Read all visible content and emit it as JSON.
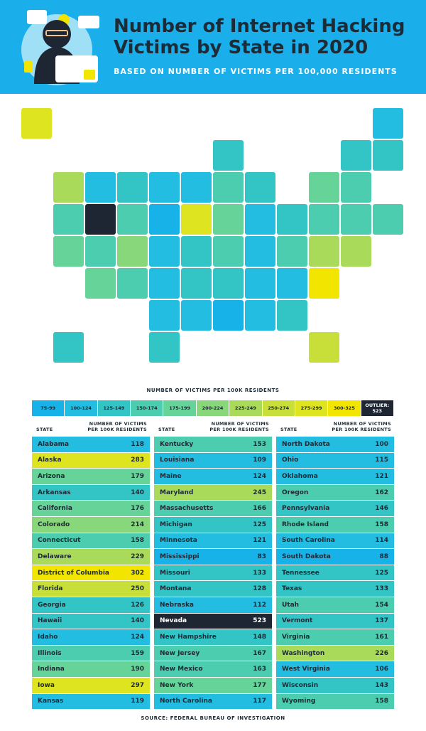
{
  "header": {
    "title": "Number of Internet Hacking Victims by State in 2020",
    "subtitle": "BASED ON NUMBER OF VICTIMS PER 100,000 RESIDENTS"
  },
  "legend": {
    "title": "NUMBER OF VICTIMS PER 100K RESIDENTS",
    "items": [
      {
        "label": "75-99",
        "range": [
          75,
          99
        ],
        "color": "#17b2e8"
      },
      {
        "label": "100-124",
        "range": [
          100,
          124
        ],
        "color": "#22bde0"
      },
      {
        "label": "125-149",
        "range": [
          125,
          149
        ],
        "color": "#33c4c6"
      },
      {
        "label": "150-174",
        "range": [
          150,
          174
        ],
        "color": "#4ccdb0"
      },
      {
        "label": "175-199",
        "range": [
          175,
          199
        ],
        "color": "#66d398"
      },
      {
        "label": "200-224",
        "range": [
          200,
          224
        ],
        "color": "#88d77a"
      },
      {
        "label": "225-249",
        "range": [
          225,
          249
        ],
        "color": "#a9da5a"
      },
      {
        "label": "250-274",
        "range": [
          250,
          274
        ],
        "color": "#c8df3a"
      },
      {
        "label": "275-299",
        "range": [
          275,
          299
        ],
        "color": "#dfe420"
      },
      {
        "label": "300-325",
        "range": [
          300,
          325
        ],
        "color": "#f2e600"
      },
      {
        "label": "OUTLIER: 523",
        "color": "#1f2633"
      }
    ]
  },
  "table": {
    "columns": [
      {
        "state_header": "STATE",
        "value_header": "NUMBER OF VICTIMS PER 100K RESIDENTS",
        "rows": [
          [
            "Alabama",
            118
          ],
          [
            "Alaska",
            283
          ],
          [
            "Arizona",
            179
          ],
          [
            "Arkansas",
            140
          ],
          [
            "California",
            176
          ],
          [
            "Colorado",
            214
          ],
          [
            "Connecticut",
            158
          ],
          [
            "Delaware",
            229
          ],
          [
            "District of Columbia",
            302
          ],
          [
            "Florida",
            250
          ],
          [
            "Georgia",
            126
          ],
          [
            "Hawaii",
            140
          ],
          [
            "Idaho",
            124
          ],
          [
            "Illinois",
            159
          ],
          [
            "Indiana",
            190
          ],
          [
            "Iowa",
            297
          ],
          [
            "Kansas",
            119
          ]
        ]
      },
      {
        "state_header": "STATE",
        "value_header": "NUMBER OF VICTIMS PER 100K RESIDENTS",
        "rows": [
          [
            "Kentucky",
            153
          ],
          [
            "Louisiana",
            109
          ],
          [
            "Maine",
            124
          ],
          [
            "Maryland",
            245
          ],
          [
            "Massachusetts",
            166
          ],
          [
            "Michigan",
            125
          ],
          [
            "Minnesota",
            121
          ],
          [
            "Mississippi",
            83
          ],
          [
            "Missouri",
            133
          ],
          [
            "Montana",
            128
          ],
          [
            "Nebraska",
            112
          ],
          [
            "Nevada",
            523
          ],
          [
            "New Hampshire",
            148
          ],
          [
            "New Jersey",
            167
          ],
          [
            "New Mexico",
            163
          ],
          [
            "New York",
            177
          ],
          [
            "North Carolina",
            117
          ]
        ]
      },
      {
        "state_header": "STATE",
        "value_header": "NUMBER OF VICTIMS PER 100K RESIDENTS",
        "rows": [
          [
            "North Dakota",
            100
          ],
          [
            "Ohio",
            115
          ],
          [
            "Oklahoma",
            121
          ],
          [
            "Oregon",
            162
          ],
          [
            "Pennsylvania",
            146
          ],
          [
            "Rhode Island",
            158
          ],
          [
            "South Carolina",
            114
          ],
          [
            "South Dakota",
            88
          ],
          [
            "Tennessee",
            125
          ],
          [
            "Texas",
            133
          ],
          [
            "Utah",
            154
          ],
          [
            "Vermont",
            137
          ],
          [
            "Virginia",
            161
          ],
          [
            "Washington",
            226
          ],
          [
            "West Virginia",
            106
          ],
          [
            "Wisconsin",
            143
          ],
          [
            "Wyoming",
            158
          ]
        ]
      }
    ]
  },
  "source": "SOURCE: FEDERAL BUREAU OF INVESTIGATION"
}
